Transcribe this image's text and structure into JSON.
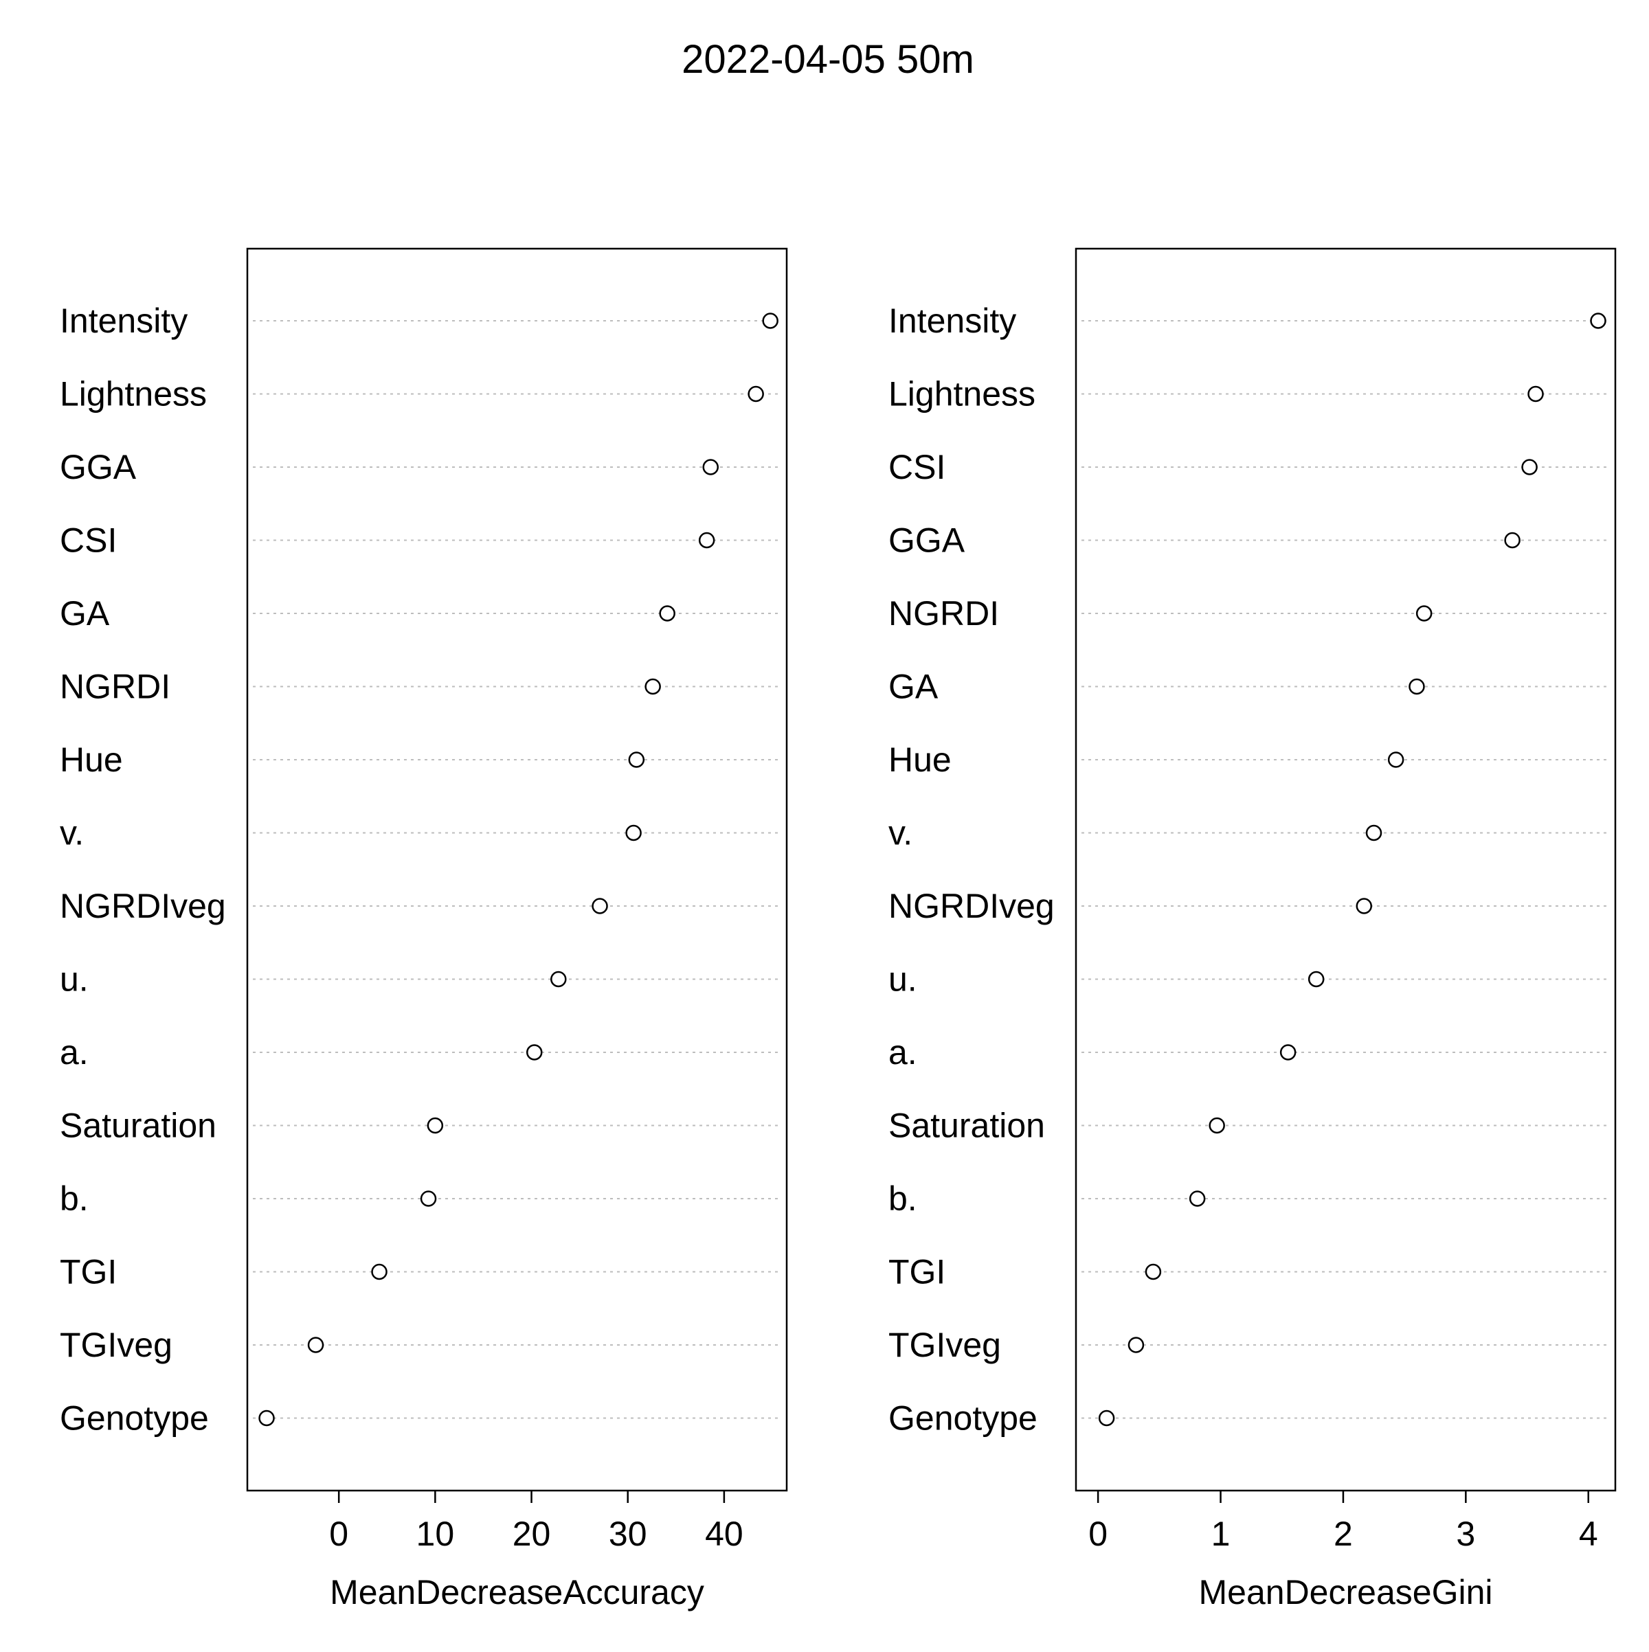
{
  "title": "2022-04-05 50m",
  "chart_data": [
    {
      "type": "scatter",
      "xlabel": "MeanDecreaseAccuracy",
      "ylabel": "",
      "xlim": [
        -9.5,
        46.5
      ],
      "xticks": [
        0,
        10,
        20,
        30,
        40
      ],
      "grid": "horizontal-dotted",
      "categories": [
        "Intensity",
        "Lightness",
        "GGA",
        "CSI",
        "GA",
        "NGRDI",
        "Hue",
        "v.",
        "NGRDIveg",
        "u.",
        "a.",
        "Saturation",
        "b.",
        "TGI",
        "TGIveg",
        "Genotype"
      ],
      "values": [
        44.8,
        43.3,
        38.6,
        38.2,
        34.1,
        32.6,
        30.9,
        30.6,
        27.1,
        22.8,
        20.3,
        10.0,
        9.3,
        4.2,
        -2.4,
        -7.5
      ]
    },
    {
      "type": "scatter",
      "xlabel": "MeanDecreaseGini",
      "ylabel": "",
      "xlim": [
        -0.18,
        4.22
      ],
      "xticks": [
        0,
        1,
        2,
        3,
        4
      ],
      "grid": "horizontal-dotted",
      "categories": [
        "Intensity",
        "Lightness",
        "CSI",
        "GGA",
        "NGRDI",
        "GA",
        "Hue",
        "v.",
        "NGRDIveg",
        "u.",
        "a.",
        "Saturation",
        "b.",
        "TGI",
        "TGIveg",
        "Genotype"
      ],
      "values": [
        4.08,
        3.57,
        3.52,
        3.38,
        2.66,
        2.6,
        2.43,
        2.25,
        2.17,
        1.78,
        1.55,
        0.97,
        0.81,
        0.45,
        0.31,
        0.07
      ]
    }
  ]
}
